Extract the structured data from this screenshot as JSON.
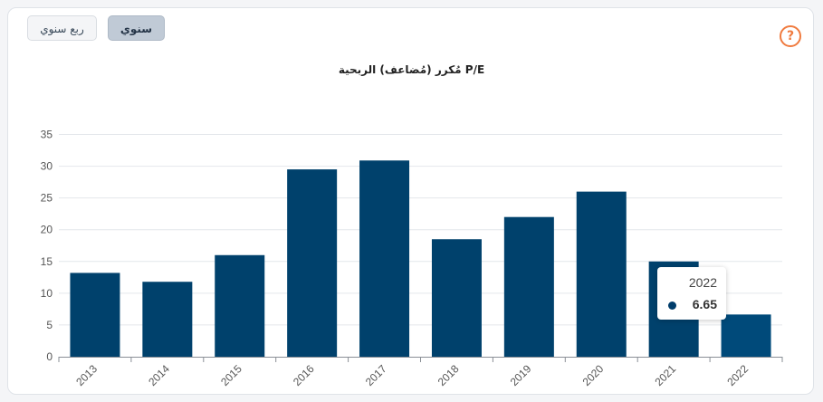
{
  "toggle": {
    "quarterly_label": "ربع سنوي",
    "annual_label": "سنوي"
  },
  "help_symbol": "?",
  "colors": {
    "bar": "#00416c",
    "bar_active": "#004a7a",
    "accent": "#f07b3f"
  },
  "tooltip": {
    "label": "2022",
    "value": "6.65"
  },
  "chart_data": {
    "type": "bar",
    "title": "مُكرر (مُضاعف) الربحية P/E",
    "categories": [
      "2013",
      "2014",
      "2015",
      "2016",
      "2017",
      "2018",
      "2019",
      "2020",
      "2021",
      "2022"
    ],
    "values": [
      13.2,
      11.8,
      16.0,
      29.5,
      30.9,
      18.5,
      22.0,
      26.0,
      15.0,
      6.65
    ],
    "ylim": [
      0,
      35
    ],
    "yticks": [
      0,
      5,
      10,
      15,
      20,
      25,
      30,
      35
    ],
    "grid": true,
    "xlabel": "",
    "ylabel": ""
  }
}
